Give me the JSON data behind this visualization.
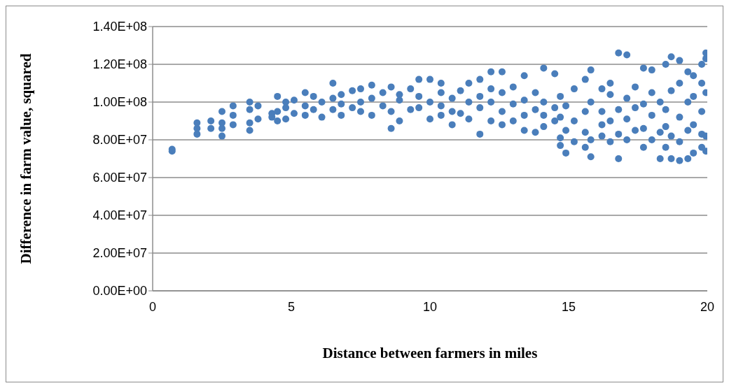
{
  "chart_data": {
    "type": "scatter",
    "xlabel": "Distance between farmers in miles",
    "ylabel": "Difference in farm value, squared",
    "x": [
      0.7,
      0.7,
      1.6,
      1.6,
      1.6,
      2.1,
      2.1,
      2.5,
      2.5,
      2.5,
      2.5,
      2.9,
      2.9,
      2.9,
      3.5,
      3.5,
      3.5,
      3.5,
      3.8,
      3.8,
      4.3,
      4.3,
      4.5,
      4.5,
      4.5,
      4.8,
      4.8,
      4.8,
      5.1,
      5.1,
      5.5,
      5.5,
      5.5,
      5.8,
      5.8,
      6.1,
      6.1,
      6.5,
      6.5,
      6.5,
      6.8,
      6.8,
      6.8,
      7.2,
      7.2,
      7.5,
      7.5,
      7.5,
      7.9,
      7.9,
      7.9,
      8.3,
      8.3,
      8.6,
      8.6,
      8.6,
      8.9,
      8.9,
      8.9,
      9.3,
      9.3,
      9.6,
      9.6,
      9.6,
      10,
      10,
      10,
      10.4,
      10.4,
      10.4,
      10.4,
      10.8,
      10.8,
      10.8,
      11.1,
      11.1,
      11.4,
      11.4,
      11.4,
      11.8,
      11.8,
      11.8,
      11.8,
      12.2,
      12.2,
      12.2,
      12.2,
      12.6,
      12.6,
      12.6,
      12.6,
      13,
      13,
      13,
      13.4,
      13.4,
      13.4,
      13.4,
      13.8,
      13.8,
      13.8,
      14.1,
      14.1,
      14.1,
      14.1,
      14.5,
      14.5,
      14.5,
      14.7,
      14.7,
      14.7,
      14.7,
      14.9,
      14.9,
      14.9,
      15.2,
      15.2,
      15.2,
      15.6,
      15.6,
      15.6,
      15.6,
      15.8,
      15.8,
      15.8,
      15.8,
      16.2,
      16.2,
      16.2,
      16.2,
      16.5,
      16.5,
      16.5,
      16.5,
      16.8,
      16.8,
      16.8,
      16.8,
      17.1,
      17.1,
      17.1,
      17.1,
      17.4,
      17.4,
      17.4,
      17.7,
      17.7,
      17.7,
      17.7,
      18,
      18,
      18,
      18,
      18.3,
      18.3,
      18.3,
      18.5,
      18.5,
      18.5,
      18.5,
      18.7,
      18.7,
      18.7,
      18.7,
      19,
      19,
      19,
      19,
      19,
      19.3,
      19.3,
      19.3,
      19.3,
      19.5,
      19.5,
      19.5,
      19.5,
      19.8,
      19.8,
      19.8,
      19.8,
      19.8,
      19.95,
      19.95,
      19.95,
      19.95,
      19.95
    ],
    "values": [
      74000000,
      75000000,
      83000000,
      86000000,
      89000000,
      86000000,
      90000000,
      82000000,
      86000000,
      89000000,
      95000000,
      88000000,
      93000000,
      98000000,
      85000000,
      89000000,
      96000000,
      100000000,
      91000000,
      98000000,
      92000000,
      94000000,
      90000000,
      95000000,
      103000000,
      91000000,
      97000000,
      100000000,
      94000000,
      101000000,
      93000000,
      98000000,
      105000000,
      96000000,
      103000000,
      92000000,
      100000000,
      96000000,
      102000000,
      110000000,
      93000000,
      99000000,
      104000000,
      97000000,
      106000000,
      95000000,
      100000000,
      107000000,
      93000000,
      102000000,
      109000000,
      98000000,
      105000000,
      86000000,
      95000000,
      108000000,
      90000000,
      101000000,
      104000000,
      96000000,
      107000000,
      97000000,
      103000000,
      112000000,
      91000000,
      100000000,
      112000000,
      93000000,
      98000000,
      105000000,
      110000000,
      88000000,
      95000000,
      102000000,
      94000000,
      106000000,
      91000000,
      100000000,
      110000000,
      83000000,
      97000000,
      103000000,
      112000000,
      90000000,
      100000000,
      107000000,
      116000000,
      88000000,
      95000000,
      105000000,
      116000000,
      90000000,
      99000000,
      108000000,
      85000000,
      93000000,
      101000000,
      114000000,
      84000000,
      96000000,
      105000000,
      87000000,
      93000000,
      100000000,
      118000000,
      90000000,
      97000000,
      115000000,
      77000000,
      81000000,
      92000000,
      103000000,
      73000000,
      85000000,
      98000000,
      79000000,
      90000000,
      107000000,
      76000000,
      84000000,
      95000000,
      112000000,
      71000000,
      80000000,
      100000000,
      117000000,
      82000000,
      88000000,
      95000000,
      107000000,
      79000000,
      90000000,
      104000000,
      110000000,
      70000000,
      83000000,
      96000000,
      126000000,
      80000000,
      91000000,
      102000000,
      125000000,
      85000000,
      97000000,
      108000000,
      76000000,
      86000000,
      99000000,
      118000000,
      80000000,
      93000000,
      105000000,
      117000000,
      70000000,
      84000000,
      100000000,
      76000000,
      87000000,
      96000000,
      120000000,
      70000000,
      82000000,
      106000000,
      124000000,
      69000000,
      79000000,
      92000000,
      110000000,
      122000000,
      70000000,
      85000000,
      100000000,
      116000000,
      73000000,
      88000000,
      103000000,
      114000000,
      76000000,
      83000000,
      95000000,
      110000000,
      120000000,
      74000000,
      82000000,
      105000000,
      123000000,
      126000000
    ],
    "color": "#4a7ebb",
    "marker": "circle",
    "grid": "y",
    "xlim": [
      0,
      20
    ],
    "xticks": [
      0,
      5,
      10,
      15,
      20
    ],
    "ylim": [
      0,
      140000000
    ],
    "yticks": [
      {
        "value": 0,
        "label": "0.00E+00"
      },
      {
        "value": 20000000,
        "label": "2.00E+07"
      },
      {
        "value": 40000000,
        "label": "4.00E+07"
      },
      {
        "value": 60000000,
        "label": "6.00E+07"
      },
      {
        "value": 80000000,
        "label": "8.00E+07"
      },
      {
        "value": 100000000,
        "label": "1.00E+08"
      },
      {
        "value": 120000000,
        "label": "1.20E+08"
      },
      {
        "value": 140000000,
        "label": "1.40E+08"
      }
    ]
  }
}
